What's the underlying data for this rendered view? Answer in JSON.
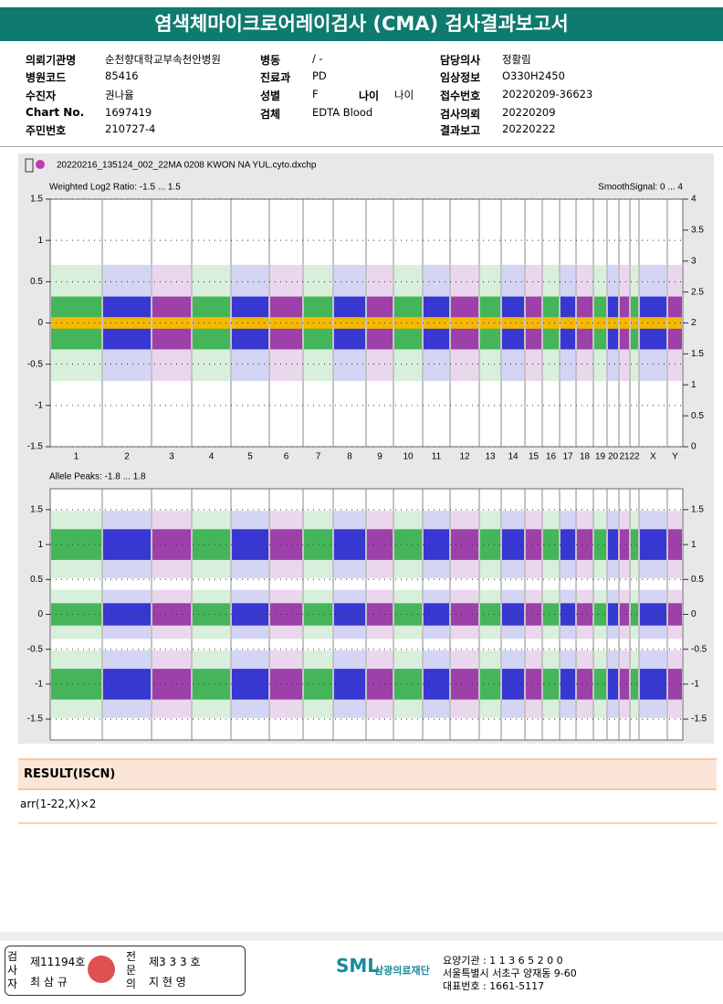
{
  "header": {
    "title": "염색체마이크로어레이검사 (CMA) 검사결과보고서"
  },
  "info": [
    [
      {
        "label": "의뢰기관명",
        "value": "순천향대학교부속천안병원"
      },
      {
        "label": "병동",
        "value": "/ -"
      },
      {
        "label": "담당의사",
        "value": "정활림"
      }
    ],
    [
      {
        "label": "병원코드",
        "value": "85416"
      },
      {
        "label": "진료과",
        "value": "PD"
      },
      {
        "label": "임상정보",
        "value": "O330H2450"
      }
    ],
    [
      {
        "label": "수진자",
        "value": "권나율"
      },
      {
        "label": "성별",
        "value": "F"
      },
      {
        "label": "접수번호",
        "value": "20220209-36623"
      }
    ],
    [
      {
        "label": "Chart No.",
        "value": "1697419"
      },
      {
        "label": "검체",
        "value": "EDTA Blood"
      },
      {
        "label": "검사의뢰",
        "value": "20220209"
      }
    ],
    [
      {
        "label": "주민번호",
        "value": "210727-4"
      },
      {
        "label": "결과보고",
        "value": "20220222"
      }
    ]
  ],
  "age": {
    "label": "나이",
    "value": "나이"
  },
  "plot": {
    "file": "20220216_135124_002_22MA 0208 KWON NA YUL.cyto.dxchp",
    "panel1": {
      "title": "Weighted Log2 Ratio: -1.5 ... 1.5",
      "right_title": "SmoothSignal: 0 ... 4",
      "ylim": [
        -1.5,
        1.5
      ],
      "yticks": [
        1.5,
        1,
        0.5,
        0,
        -0.5,
        -1,
        -1.5
      ],
      "y2lim": [
        0,
        4
      ],
      "y2ticks": [
        4,
        3.5,
        3,
        2.5,
        2,
        1.5,
        1,
        0.5,
        0
      ]
    },
    "panel2": {
      "title": "Allele Peaks: -1.8 ... 1.8",
      "ylim": [
        -1.8,
        1.8
      ],
      "yticks": [
        1.5,
        1,
        0.5,
        0,
        -0.5,
        -1,
        -1.5
      ],
      "y2ticks": [
        1.5,
        1,
        0.5,
        0,
        -0.5,
        -1,
        -1.5
      ]
    },
    "chromosomes": [
      "1",
      "2",
      "3",
      "4",
      "5",
      "6",
      "7",
      "8",
      "9",
      "10",
      "11",
      "12",
      "13",
      "14",
      "15",
      "16",
      "17",
      "18",
      "19",
      "20",
      "21",
      "22",
      "X",
      "Y"
    ],
    "colors": [
      "#22a83a",
      "#1010c8",
      "#8a1a9a"
    ],
    "smooth_color": "#f5b800"
  },
  "result": {
    "heading": "RESULT(ISCN)",
    "text": "arr(1-22,X)×2"
  },
  "footer": {
    "left_role": "검사자",
    "left_no": "제11194호",
    "left_name": "최 삼 규",
    "right_role": "전문의",
    "right_no": "제3 3 3 호",
    "right_name": "지 현 영",
    "org": "삼광의료재단",
    "lines": [
      "요양기관 : 1 1 3 6 5 2 0 0",
      "서울특별시 서초구 양재동 9-60",
      "대표번호 : 1661-5117"
    ]
  }
}
